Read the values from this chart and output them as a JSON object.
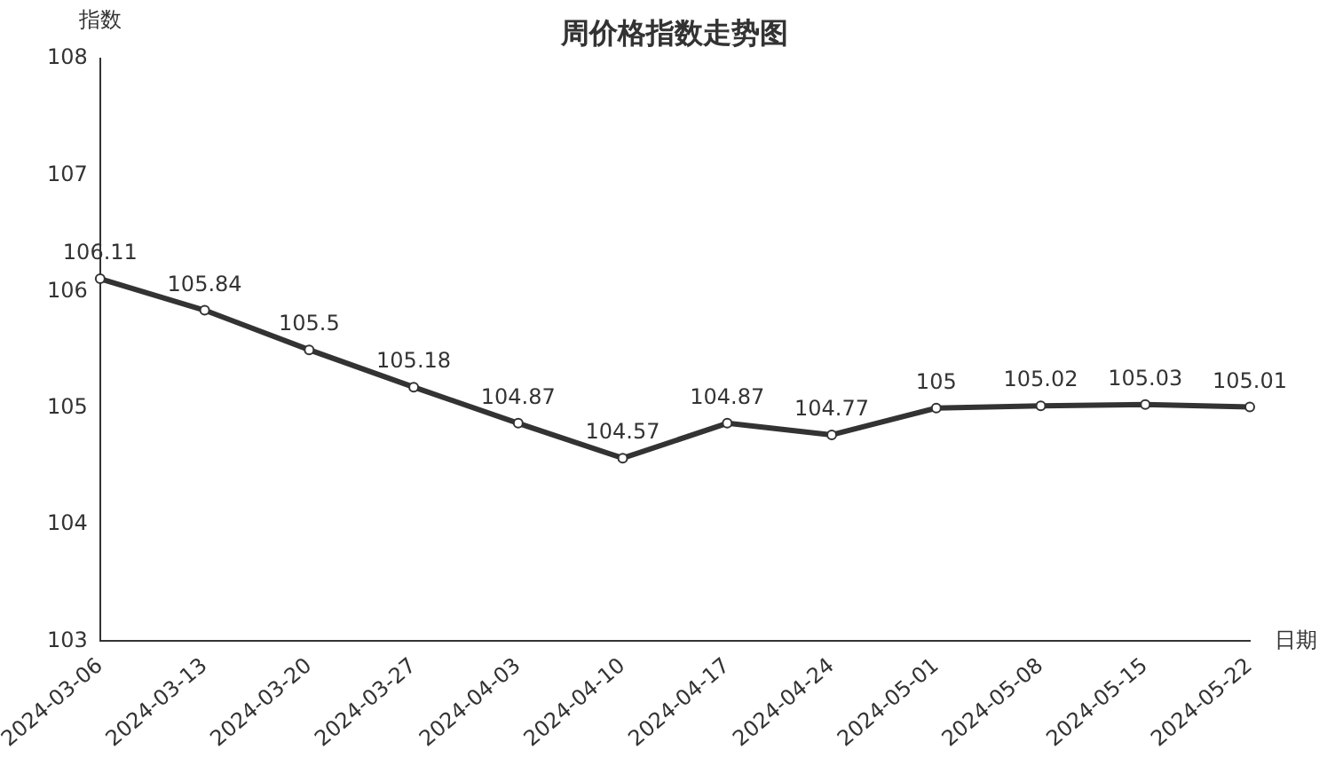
{
  "chart_data": {
    "type": "line",
    "title": "周价格指数走势图",
    "xlabel": "日期",
    "ylabel": "指数",
    "categories": [
      "2024-03-06",
      "2024-03-13",
      "2024-03-20",
      "2024-03-27",
      "2024-04-03",
      "2024-04-10",
      "2024-04-17",
      "2024-04-24",
      "2024-05-01",
      "2024-05-08",
      "2024-05-15",
      "2024-05-22"
    ],
    "series": [
      {
        "color": "#333333",
        "values": [
          106.11,
          105.84,
          105.5,
          105.18,
          104.87,
          104.57,
          104.87,
          104.77,
          105,
          105.02,
          105.03,
          105.01
        ]
      }
    ],
    "ylim": [
      103,
      108
    ],
    "yticks": [
      103,
      104,
      105,
      106,
      107,
      108
    ],
    "data_labels": true,
    "grid": false,
    "legend": false,
    "marker": "circle",
    "line_style": "solid"
  }
}
